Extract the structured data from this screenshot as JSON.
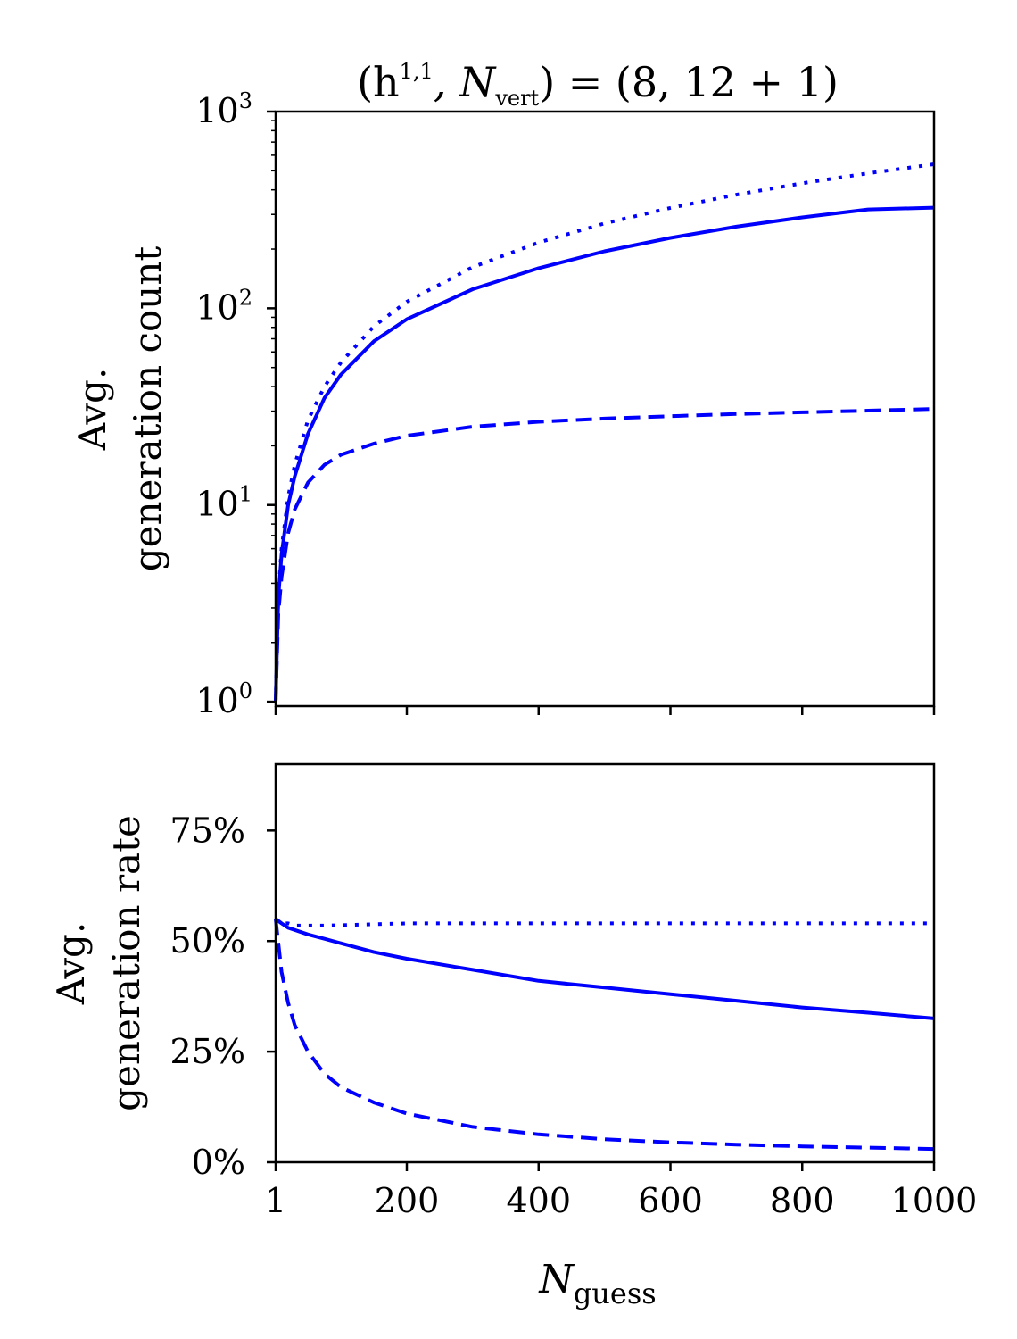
{
  "chart_data": [
    {
      "type": "line",
      "title_parts": [
        "(h",
        "1,1",
        ", N",
        "vert",
        ") = (8, 12 + 1)"
      ],
      "ylabel_lines": [
        "Avg.",
        "generation count"
      ],
      "yscale": "log",
      "ylim": [
        0.95,
        1000
      ],
      "xlim": [
        1,
        1000
      ],
      "yticks": [
        {
          "value": 1,
          "base": "10",
          "exp": "0"
        },
        {
          "value": 10,
          "base": "10",
          "exp": "1"
        },
        {
          "value": 100,
          "base": "10",
          "exp": "2"
        },
        {
          "value": 1000,
          "base": "10",
          "exp": "3"
        }
      ],
      "x": [
        1,
        5,
        10,
        20,
        30,
        50,
        75,
        100,
        150,
        200,
        300,
        400,
        500,
        600,
        700,
        800,
        900,
        1000
      ],
      "series": [
        {
          "style": "dotted",
          "color": "#0000ff",
          "values": [
            1,
            3.5,
            6,
            11,
            16,
            27,
            40,
            53,
            81,
            108,
            162,
            216,
            270,
            324,
            378,
            432,
            486,
            540
          ]
        },
        {
          "style": "solid",
          "color": "#0000ff",
          "values": [
            1,
            3.4,
            5.6,
            10,
            14,
            23,
            35,
            46,
            68,
            88,
            125,
            160,
            195,
            228,
            260,
            290,
            318,
            325
          ]
        },
        {
          "style": "dashed",
          "color": "#0000ff",
          "values": [
            1,
            2.8,
            4.3,
            7.2,
            9.5,
            13,
            16,
            18,
            20.5,
            22.5,
            25,
            26.5,
            27.5,
            28.3,
            29,
            29.6,
            30.2,
            30.8
          ]
        }
      ]
    },
    {
      "type": "line",
      "ylabel_lines": [
        "Avg.",
        "generation rate"
      ],
      "xlabel_main": "N",
      "xlabel_sub": "guess",
      "ylim": [
        0,
        90
      ],
      "xlim": [
        1,
        1000
      ],
      "yticks": [
        "0%",
        "25%",
        "50%",
        "75%"
      ],
      "ytick_values": [
        0,
        25,
        50,
        75
      ],
      "xticks": [
        "1",
        "200",
        "400",
        "600",
        "800",
        "1000"
      ],
      "xtick_values": [
        1,
        200,
        400,
        600,
        800,
        1000
      ],
      "x": [
        1,
        10,
        20,
        30,
        50,
        75,
        100,
        150,
        200,
        300,
        400,
        500,
        600,
        700,
        800,
        900,
        1000
      ],
      "series": [
        {
          "style": "dotted",
          "color": "#0000ff",
          "values": [
            55,
            54,
            54,
            53.5,
            53.5,
            53.5,
            53.6,
            53.8,
            54,
            54,
            54,
            54,
            54,
            54,
            54,
            54,
            54
          ]
        },
        {
          "style": "solid",
          "color": "#0000ff",
          "values": [
            55,
            54,
            53,
            52.5,
            51.5,
            50.5,
            49.5,
            47.5,
            46,
            43.5,
            41,
            39.5,
            38,
            36.5,
            35,
            33.8,
            32.5
          ]
        },
        {
          "style": "dashed",
          "color": "#0000ff",
          "values": [
            55,
            43,
            36,
            31,
            25,
            20,
            17,
            13.5,
            11,
            8,
            6.3,
            5.2,
            4.5,
            4,
            3.6,
            3.3,
            3
          ]
        }
      ]
    }
  ]
}
